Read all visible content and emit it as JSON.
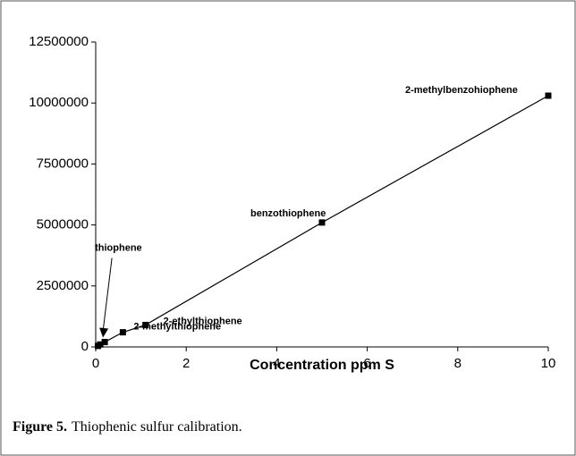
{
  "chart_data": {
    "type": "scatter",
    "title": "Thiophenic sulfur calibration.",
    "caption_label": "Figure 5.",
    "x_label": "Concentration ppm S",
    "x": [
      0.05,
      0.1,
      0.2,
      0.6,
      1.1,
      5,
      10
    ],
    "series": [
      {
        "color": "#000000",
        "values": [
          40000,
          100000,
          200000,
          600000,
          900000,
          5100000,
          10300000
        ],
        "point_labels": [
          null,
          null,
          "thiophene",
          "2-methylthiophene",
          "2-ethylthiophene",
          "benzothiophene",
          "2-methylbenzohiophene"
        ]
      }
    ],
    "xlim": [
      0,
      10
    ],
    "xticks": [
      0,
      2,
      4,
      6,
      8,
      10
    ],
    "ylim": [
      0,
      12500000
    ],
    "yticks": [
      0,
      2500000,
      5000000,
      7500000,
      10000000,
      12500000
    ]
  }
}
